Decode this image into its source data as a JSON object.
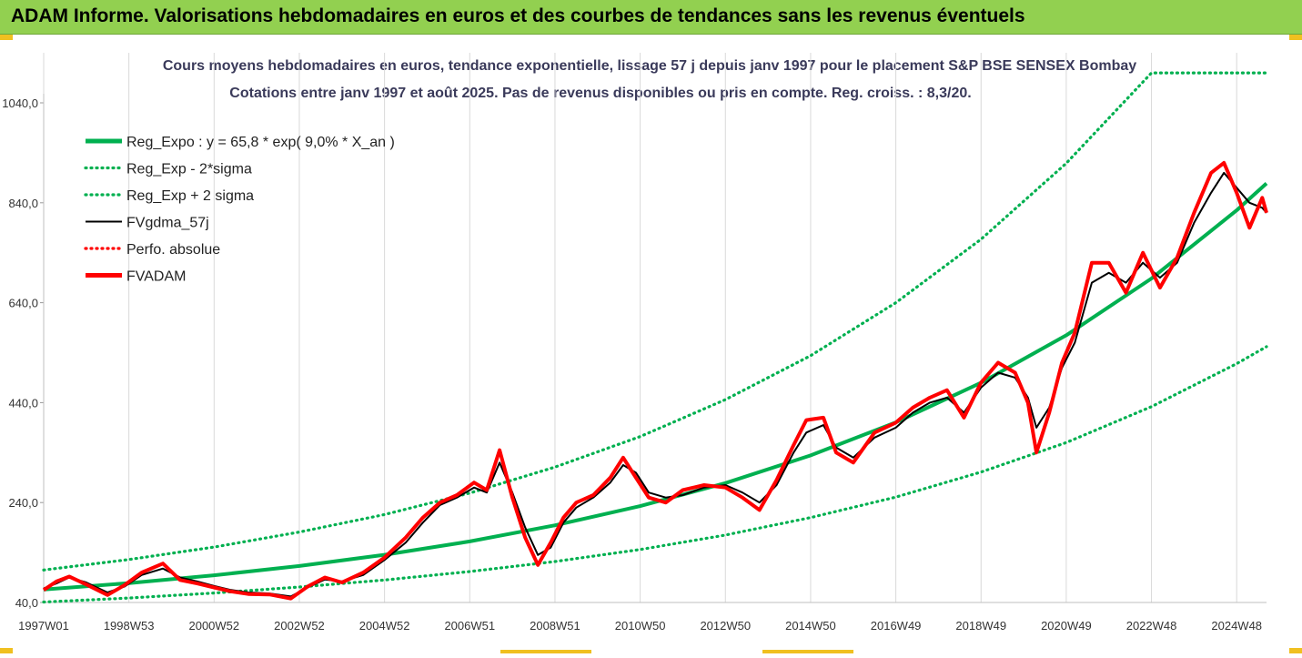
{
  "banner": {
    "title": "ADAM Informe. Valorisations hebdomadaires en euros et des courbes de tendances sans les revenus éventuels"
  },
  "colors": {
    "banner_bg": "#92d050",
    "green": "#00b050",
    "black": "#000000",
    "red": "#ff0000",
    "grid": "#d9d9d9"
  },
  "chart_data": {
    "type": "line",
    "title": "Cours moyens hebdomadaires en euros, tendance exponentielle, lissage 57 j depuis janv 1997 pour le placement S&P BSE SENSEX Bombay",
    "subtitle": "Cotations entre janv 1997 et août 2025.  Pas de revenus disponibles ou pris en compte. Reg. croiss. : 8,3/20.",
    "xlabel": "",
    "ylabel": "",
    "ylim": [
      40,
      1040
    ],
    "xlim": [
      1997.0,
      2025.7
    ],
    "y_ticks": [
      "40,0",
      "240,0",
      "440,0",
      "640,0",
      "840,0",
      "1040,0"
    ],
    "x_ticks": [
      {
        "label": "1997W01",
        "x": 1997.0
      },
      {
        "label": "1998W53",
        "x": 1999.0
      },
      {
        "label": "2000W52",
        "x": 2001.0
      },
      {
        "label": "2002W52",
        "x": 2003.0
      },
      {
        "label": "2004W52",
        "x": 2005.0
      },
      {
        "label": "2006W51",
        "x": 2007.0
      },
      {
        "label": "2008W51",
        "x": 2009.0
      },
      {
        "label": "2010W50",
        "x": 2011.0
      },
      {
        "label": "2012W50",
        "x": 2013.0
      },
      {
        "label": "2014W50",
        "x": 2015.0
      },
      {
        "label": "2016W49",
        "x": 2017.0
      },
      {
        "label": "2018W49",
        "x": 2019.0
      },
      {
        "label": "2020W49",
        "x": 2021.0
      },
      {
        "label": "2022W48",
        "x": 2023.0
      },
      {
        "label": "2024W48",
        "x": 2025.0
      }
    ],
    "grid": true,
    "legend_position": "top-left",
    "series": [
      {
        "name": "Reg_Expo : y = 65,8 * exp( 9,0% *  X_an )",
        "style": "thick-solid",
        "color": "#00b050",
        "x": [
          1997.0,
          1999.0,
          2001.0,
          2003.0,
          2005.0,
          2007.0,
          2009.0,
          2011.0,
          2013.0,
          2015.0,
          2017.0,
          2019.0,
          2021.0,
          2023.0,
          2025.0,
          2025.7
        ],
        "y": [
          65.8,
          78.8,
          94.4,
          113.1,
          135.5,
          162.3,
          194.4,
          232.9,
          279.0,
          334.3,
          400.4,
          479.7,
          574.7,
          688.4,
          824.8,
          878.8
        ]
      },
      {
        "name": "Reg_Exp - 2*sigma",
        "style": "dotted",
        "color": "#00b050",
        "x": [
          1997.0,
          1999.0,
          2001.0,
          2003.0,
          2005.0,
          2007.0,
          2009.0,
          2011.0,
          2013.0,
          2015.0,
          2017.0,
          2019.0,
          2021.0,
          2023.0,
          2025.0,
          2025.7
        ],
        "y": [
          41,
          49,
          59,
          71,
          85,
          102,
          122,
          146,
          175,
          210,
          251,
          301,
          360,
          432,
          518,
          552
        ]
      },
      {
        "name": "Reg_Exp + 2 sigma",
        "style": "dotted",
        "color": "#00b050",
        "x": [
          1997.0,
          1999.0,
          2001.0,
          2003.0,
          2005.0,
          2007.0,
          2009.0,
          2011.0,
          2013.0,
          2015.0,
          2017.0,
          2019.0,
          2021.0,
          2023.0,
          2023.8,
          2025.7
        ],
        "y": [
          105,
          126,
          151,
          181,
          216,
          259,
          311,
          372,
          446,
          534,
          640,
          767,
          919,
          1100,
          1100,
          1100
        ]
      },
      {
        "name": "FVgdma_57j",
        "style": "solid",
        "color": "#000000",
        "x": [
          1997.0,
          1997.3,
          1997.6,
          1998.0,
          1998.5,
          1998.9,
          1999.3,
          1999.8,
          2000.2,
          2000.6,
          2001.0,
          2001.4,
          2001.8,
          2002.3,
          2002.8,
          2003.2,
          2003.6,
          2004.0,
          2004.5,
          2005.0,
          2005.5,
          2005.9,
          2006.3,
          2006.7,
          2007.1,
          2007.4,
          2007.7,
          2008.0,
          2008.3,
          2008.6,
          2008.9,
          2009.2,
          2009.5,
          2009.9,
          2010.3,
          2010.6,
          2010.9,
          2011.2,
          2011.6,
          2012.0,
          2012.5,
          2013.0,
          2013.4,
          2013.8,
          2014.2,
          2014.6,
          2014.9,
          2015.3,
          2015.6,
          2016.0,
          2016.5,
          2017.0,
          2017.4,
          2017.8,
          2018.2,
          2018.6,
          2019.0,
          2019.4,
          2019.8,
          2020.1,
          2020.3,
          2020.6,
          2020.9,
          2021.2,
          2021.6,
          2022.0,
          2022.4,
          2022.8,
          2023.2,
          2023.6,
          2024.0,
          2024.4,
          2024.7,
          2025.0,
          2025.3,
          2025.6,
          2025.7
        ],
        "y": [
          68,
          78,
          90,
          80,
          60,
          72,
          95,
          108,
          90,
          82,
          73,
          65,
          60,
          58,
          52,
          70,
          86,
          82,
          95,
          125,
          160,
          200,
          235,
          250,
          270,
          260,
          320,
          260,
          190,
          135,
          150,
          200,
          230,
          250,
          280,
          315,
          300,
          260,
          250,
          255,
          270,
          275,
          260,
          240,
          275,
          340,
          380,
          395,
          350,
          330,
          370,
          390,
          420,
          440,
          450,
          420,
          470,
          500,
          490,
          450,
          390,
          430,
          510,
          560,
          680,
          700,
          680,
          720,
          690,
          720,
          800,
          860,
          900,
          870,
          840,
          830,
          820
        ]
      },
      {
        "name": "Perfo. absolue",
        "style": "dotted",
        "color": "#ff0000",
        "x": [],
        "y": []
      },
      {
        "name": "FVADAM",
        "style": "thick-solid",
        "color": "#ff0000",
        "x": [
          1997.0,
          1997.3,
          1997.6,
          1998.0,
          1998.5,
          1998.9,
          1999.3,
          1999.8,
          2000.2,
          2000.6,
          2001.0,
          2001.4,
          2001.8,
          2002.3,
          2002.8,
          2003.2,
          2003.6,
          2004.0,
          2004.5,
          2005.0,
          2005.5,
          2005.9,
          2006.3,
          2006.7,
          2007.1,
          2007.4,
          2007.7,
          2008.0,
          2008.3,
          2008.6,
          2008.9,
          2009.2,
          2009.5,
          2009.9,
          2010.3,
          2010.6,
          2010.9,
          2011.2,
          2011.6,
          2012.0,
          2012.5,
          2013.0,
          2013.4,
          2013.8,
          2014.2,
          2014.6,
          2014.9,
          2015.3,
          2015.6,
          2016.0,
          2016.5,
          2017.0,
          2017.4,
          2017.8,
          2018.2,
          2018.6,
          2019.0,
          2019.4,
          2019.8,
          2020.1,
          2020.3,
          2020.6,
          2020.9,
          2021.2,
          2021.6,
          2022.0,
          2022.4,
          2022.8,
          2023.2,
          2023.6,
          2024.0,
          2024.4,
          2024.7,
          2025.0,
          2025.3,
          2025.6,
          2025.7
        ],
        "y": [
          65,
          82,
          92,
          76,
          55,
          75,
          100,
          118,
          85,
          78,
          70,
          62,
          57,
          56,
          48,
          72,
          90,
          80,
          100,
          130,
          170,
          210,
          240,
          255,
          280,
          265,
          345,
          250,
          170,
          115,
          160,
          210,
          240,
          255,
          290,
          330,
          290,
          250,
          240,
          265,
          275,
          270,
          250,
          225,
          285,
          355,
          405,
          410,
          340,
          320,
          380,
          400,
          430,
          450,
          465,
          410,
          480,
          520,
          500,
          440,
          340,
          420,
          520,
          580,
          720,
          720,
          660,
          740,
          670,
          730,
          820,
          900,
          920,
          860,
          790,
          850,
          820
        ]
      }
    ]
  }
}
